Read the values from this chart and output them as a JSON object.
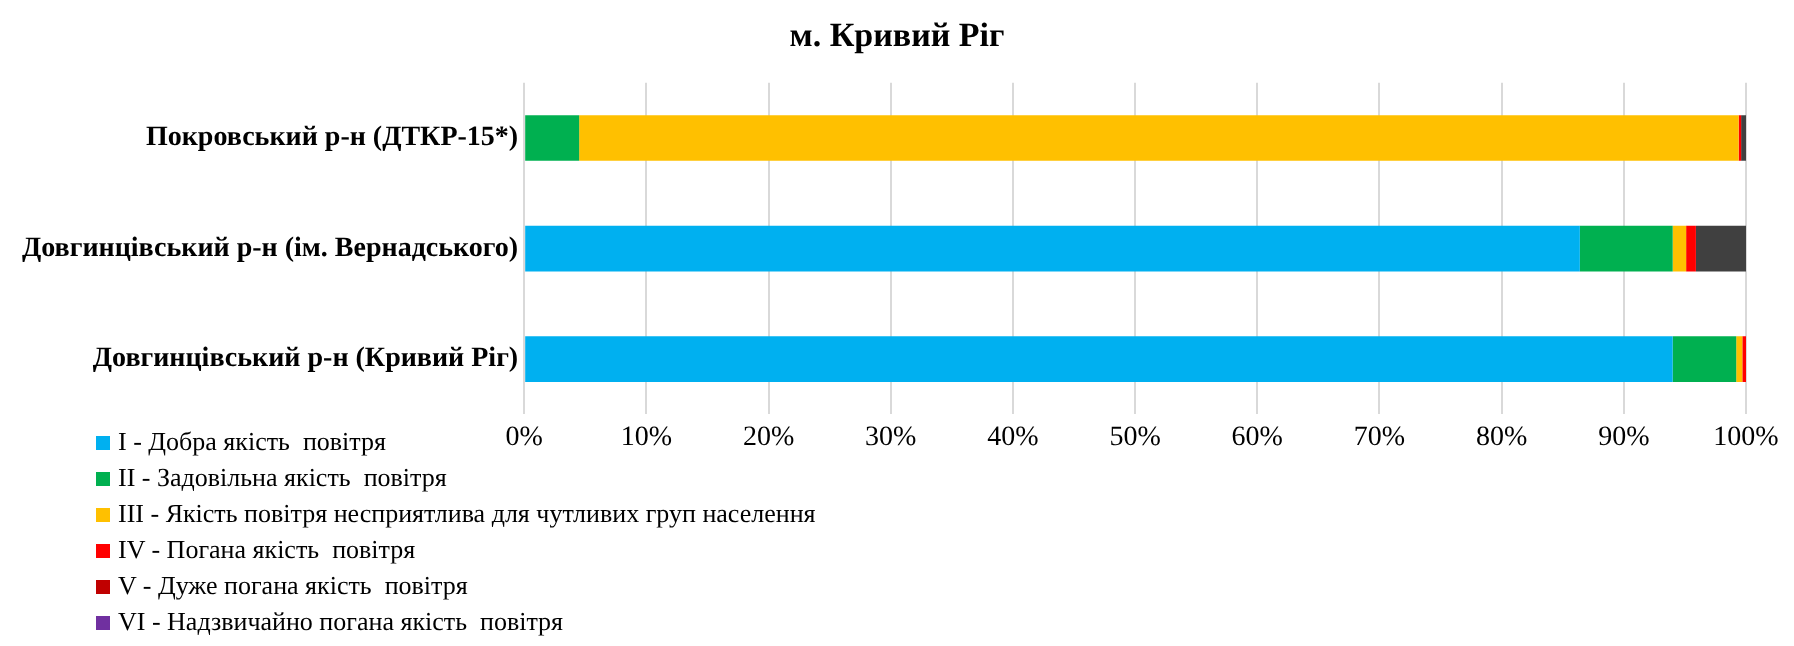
{
  "chart_data": {
    "type": "bar",
    "title": "м. Кривий Ріг",
    "orientation": "horizontal",
    "stacked": true,
    "categories": [
      "Покровський р-н (ДТКР-15*)",
      "Довгинцівський р-н (ім. Вернадського)",
      "Довгинцівський р-н (Кривий Ріг)"
    ],
    "series": [
      {
        "name": "I - Добра якість  повітря",
        "color": "#00b0f0",
        "values": [
          0,
          86.4,
          94.0
        ]
      },
      {
        "name": "II - Задовільна якість  повітря",
        "color": "#00b050",
        "values": [
          4.5,
          7.6,
          5.2
        ]
      },
      {
        "name": "III - Якість повітря несприятлива для чутливих груп населення",
        "color": "#ffc000",
        "values": [
          94.9,
          1.1,
          0.5
        ]
      },
      {
        "name": "IV - Погана якість  повітря",
        "color": "#ff0000",
        "values": [
          0.2,
          0.8,
          0.3
        ]
      },
      {
        "name": "V - Дуже погана якість  повітря",
        "color": "#c00000",
        "values": [
          0,
          0,
          0
        ]
      },
      {
        "name": "VI - Надзвичайно погана якість  повітря",
        "color": "#7030a0",
        "values": [
          0,
          0,
          0
        ]
      },
      {
        "color": "#404040",
        "values": [
          0.4,
          4.1,
          0
        ]
      }
    ],
    "xlim": [
      0,
      100
    ],
    "xticks": [
      {
        "value": 0,
        "label": "0%"
      },
      {
        "value": 10,
        "label": "10%"
      },
      {
        "value": 20,
        "label": "20%"
      },
      {
        "value": 30,
        "label": "30%"
      },
      {
        "value": 40,
        "label": "40%"
      },
      {
        "value": 50,
        "label": "50%"
      },
      {
        "value": 60,
        "label": "60%"
      },
      {
        "value": 70,
        "label": "70%"
      },
      {
        "value": 80,
        "label": "80%"
      },
      {
        "value": 90,
        "label": "90%"
      },
      {
        "value": 100,
        "label": "100%"
      }
    ],
    "grid": "x",
    "legend": "bottom left"
  }
}
